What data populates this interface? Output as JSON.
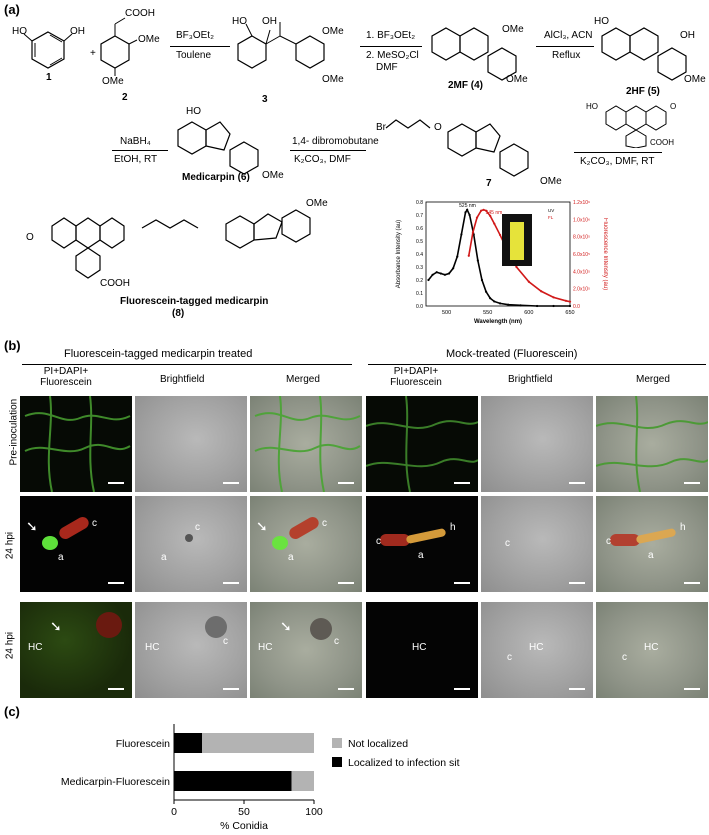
{
  "panels": {
    "a": "(a)",
    "b": "(b)",
    "c": "(c)"
  },
  "scheme": {
    "compounds": {
      "c1": "1",
      "c2": "2",
      "c3": "3",
      "c4": "2MF  (4)",
      "c5": "2HF  (5)",
      "c6": "Medicarpin (6)",
      "c7": "7",
      "c8_name": "Fluorescein-tagged medicarpin",
      "c8_num": "(8)"
    },
    "groups": {
      "cooh": "COOH",
      "ome": "OMe",
      "oh": "OH",
      "ho": "HO",
      "br": "Br",
      "o": "O",
      "plus": "+"
    },
    "reagents": {
      "r1_top": "BF₃OEt₂",
      "r1_bot": "Toulene",
      "r2_top": "1. BF₃OEt₂",
      "r2_mid": "2. MeSO₂Cl",
      "r2_bot": "DMF",
      "r3_top": "AlCl₃, ACN",
      "r3_bot": "Reflux",
      "r4_top": "NaBH₄",
      "r4_bot": "EtOH, RT",
      "r5_top": "1,4- dibromobutane",
      "r5_bot": "K₂CO₃, DMF",
      "r6_bot": "K₂CO₃, DMF, RT"
    }
  },
  "spectrum_chart": {
    "chart_data": {
      "type": "line",
      "xlabel": "Wavelength (nm)",
      "ylabel": "Absorbance Intensity (au)",
      "y2label": "Fluorescence Intensity (au)",
      "xlim": [
        475,
        650
      ],
      "ylim": [
        0,
        0.8
      ],
      "y2lim": [
        0,
        1.2
      ],
      "xticks": [
        "500",
        "550",
        "600",
        "650"
      ],
      "yticks": [
        "0.0",
        "0.1",
        "0.2",
        "0.3",
        "0.4",
        "0.5",
        "0.6",
        "0.7",
        "0.8"
      ],
      "y2ticks": [
        "0.0",
        "2.0x10⁵",
        "4.0x10⁵",
        "6.0x10⁵",
        "8.0x10⁵",
        "1.0x10⁶",
        "1.2x10⁶"
      ],
      "annotations": [
        "525 nm",
        "545 nm"
      ],
      "series": [
        {
          "name": "UV",
          "color": "#000000",
          "x": [
            478,
            483,
            488,
            493,
            498,
            503,
            508,
            513,
            518,
            523,
            525,
            528,
            533,
            538,
            543,
            548,
            553,
            558,
            565,
            575,
            590,
            610,
            630,
            650
          ],
          "y": [
            0.2,
            0.24,
            0.26,
            0.25,
            0.24,
            0.25,
            0.29,
            0.38,
            0.55,
            0.72,
            0.74,
            0.7,
            0.55,
            0.35,
            0.2,
            0.11,
            0.06,
            0.035,
            0.02,
            0.01,
            0.005,
            0.0,
            0.0,
            0.0
          ]
        },
        {
          "name": "FL",
          "color": "#d11919",
          "x": [
            527,
            532,
            537,
            542,
            545,
            548,
            553,
            558,
            565,
            575,
            585,
            600,
            615,
            630,
            645,
            650
          ],
          "y": [
            0.58,
            0.85,
            1.02,
            1.1,
            1.11,
            1.1,
            1.04,
            0.95,
            0.82,
            0.62,
            0.45,
            0.28,
            0.17,
            0.1,
            0.06,
            0.05
          ]
        }
      ]
    }
  },
  "microscopy": {
    "group_left": "Fluorescein-tagged medicarpin treated",
    "group_right": "Mock-treated (Fluorescein)",
    "col_fluor": "PI+DAPI+ Fluorescein",
    "col_bright": "Brightfield",
    "col_merged": "Merged",
    "rows": [
      "Pre-inoculation",
      "24 hpi",
      "24 hpi"
    ],
    "labels": {
      "c": "c",
      "a": "a",
      "h": "h",
      "hc": "HC"
    }
  },
  "bar_chart": {
    "chart_data": {
      "type": "bar",
      "orientation": "horizontal",
      "stacked": true,
      "categories": [
        "Fluorescein",
        "Medicarpin-Fluorescein"
      ],
      "xlabel": "% Conidia",
      "xlim": [
        0,
        100
      ],
      "xticks": [
        "0",
        "50",
        "100"
      ],
      "series": [
        {
          "name": "Localized to infection site",
          "color": "#000000",
          "values": [
            20,
            84
          ]
        },
        {
          "name": "Not localized",
          "color": "#b3b3b3",
          "values": [
            80,
            16
          ]
        }
      ]
    }
  }
}
